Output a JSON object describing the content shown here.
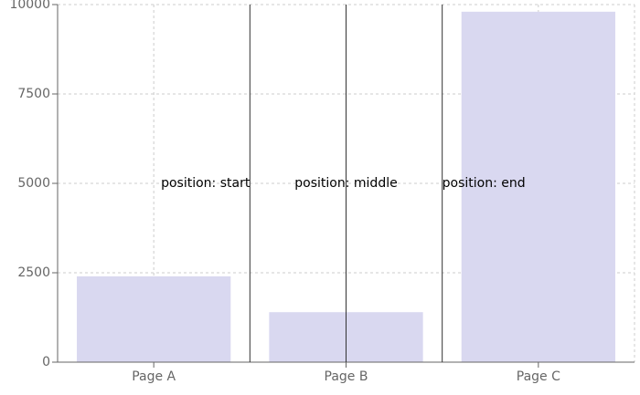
{
  "chart_data": {
    "type": "bar",
    "categories": [
      "Page A",
      "Page B",
      "Page C"
    ],
    "values": [
      2400,
      1398,
      9800
    ],
    "ylim": [
      0,
      10000
    ],
    "yticks": [
      0,
      2500,
      5000,
      7500,
      10000
    ],
    "grid": true,
    "colors": {
      "bar": "#d9d8f0",
      "axis": "#666666",
      "grid": "#cccccc",
      "reference_line": "#333333",
      "annotation": "#000000"
    },
    "reference_lines": [
      {
        "label": "position: start"
      },
      {
        "label": "position: middle"
      },
      {
        "label": "position: end"
      }
    ]
  }
}
